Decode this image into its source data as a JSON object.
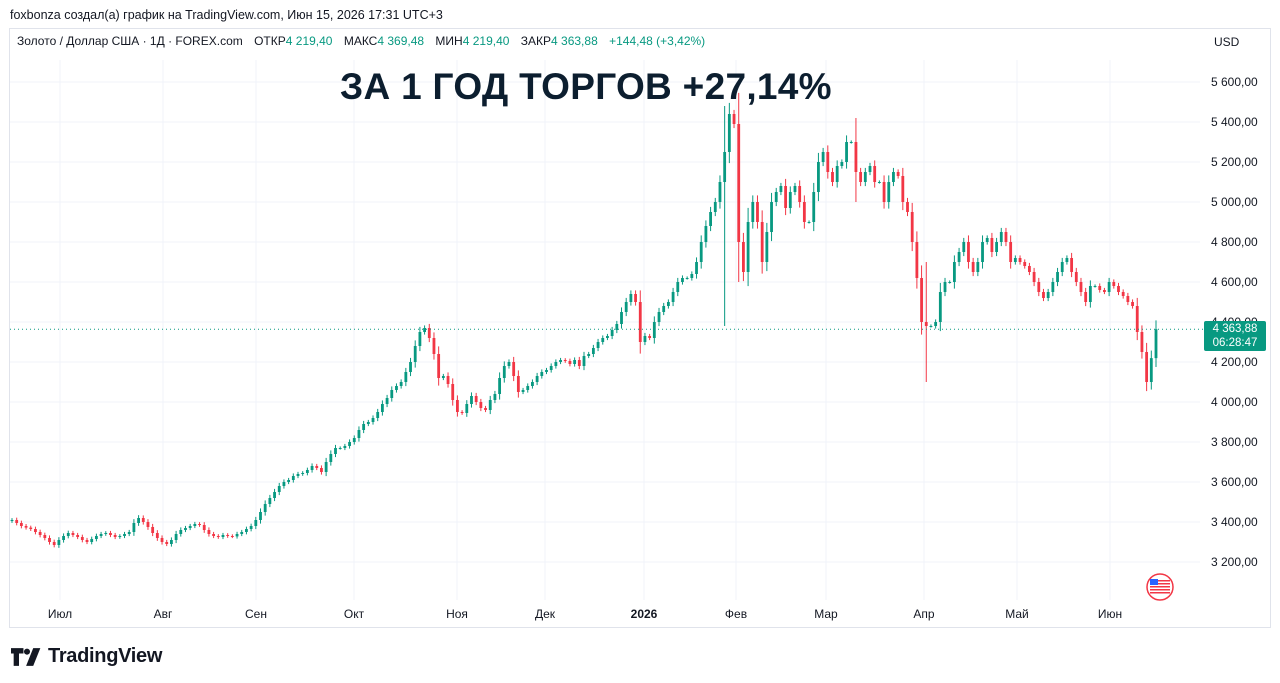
{
  "attribution": "foxbonza создал(а) график на TradingView.com, Июн 15, 2026 17:31 UTC+3",
  "legend": {
    "symbol": "Золото / Доллар США · 1Д · FOREX.com",
    "open_label": "ОТКР",
    "open_value": "4 219,40",
    "high_label": "МАКС",
    "high_value": "4 369,48",
    "low_label": "МИН",
    "low_value": "4 219,40",
    "close_label": "ЗАКР",
    "close_value": "4 363,88",
    "change": "+144,48 (+3,42%)"
  },
  "currency": "USD",
  "headline": "ЗА 1 ГОД ТОРГОВ +27,14%",
  "price_tag": {
    "price": "4 363,88",
    "countdown": "06:28:47"
  },
  "logo_text": "TradingView",
  "colors": {
    "up": "#089981",
    "down": "#f23645",
    "grid": "#f0f3fa",
    "text": "#131722"
  },
  "chart_data": {
    "type": "line",
    "ylim": [
      3000,
      5700
    ],
    "y_ticks": [
      {
        "value": 3200,
        "label": "3 200,00"
      },
      {
        "value": 3400,
        "label": "3 400,00"
      },
      {
        "value": 3600,
        "label": "3 600,00"
      },
      {
        "value": 3800,
        "label": "3 800,00"
      },
      {
        "value": 4000,
        "label": "4 000,00"
      },
      {
        "value": 4200,
        "label": "4 200,00"
      },
      {
        "value": 4400,
        "label": "4 400,00"
      },
      {
        "value": 4600,
        "label": "4 600,00"
      },
      {
        "value": 4800,
        "label": "4 800,00"
      },
      {
        "value": 5000,
        "label": "5 000,00"
      },
      {
        "value": 5200,
        "label": "5 200,00"
      },
      {
        "value": 5400,
        "label": "5 400,00"
      },
      {
        "value": 5600,
        "label": "5 600,00"
      }
    ],
    "x_ticks": [
      {
        "label": "Июл",
        "bold": false
      },
      {
        "label": "Авг",
        "bold": false
      },
      {
        "label": "Сен",
        "bold": false
      },
      {
        "label": "Окт",
        "bold": false
      },
      {
        "label": "Ноя",
        "bold": false
      },
      {
        "label": "Дек",
        "bold": false
      },
      {
        "label": "2026",
        "bold": true
      },
      {
        "label": "Фев",
        "bold": false
      },
      {
        "label": "Мар",
        "bold": false
      },
      {
        "label": "Апр",
        "bold": false
      },
      {
        "label": "Май",
        "bold": false
      },
      {
        "label": "Июн",
        "bold": false
      }
    ],
    "last_price": 4363.88,
    "series": [
      {
        "close": [
          3410,
          3395,
          3380,
          3372,
          3365,
          3350,
          3335,
          3320,
          3300,
          3285,
          3310,
          3330,
          3345,
          3335,
          3325,
          3310,
          3300,
          3315,
          3330,
          3340,
          3345,
          3335,
          3325,
          3330,
          3340,
          3350,
          3395,
          3420,
          3400,
          3375,
          3345,
          3320,
          3300,
          3290,
          3310,
          3340,
          3360,
          3370,
          3380,
          3390,
          3385,
          3360,
          3340,
          3330,
          3325,
          3335,
          3330,
          3328,
          3340,
          3350,
          3365,
          3380,
          3410,
          3450,
          3490,
          3520,
          3550,
          3580,
          3600,
          3610,
          3630,
          3640,
          3645,
          3660,
          3680,
          3670,
          3650,
          3700,
          3740,
          3770,
          3770,
          3780,
          3800,
          3820,
          3860,
          3890,
          3900,
          3920,
          3950,
          3990,
          4020,
          4060,
          4080,
          4100,
          4150,
          4200,
          4280,
          4350,
          4370,
          4320,
          4240,
          4120,
          4130,
          4090,
          4010,
          3950,
          3945,
          3990,
          4030,
          4000,
          3970,
          3960,
          4010,
          4040,
          4120,
          4180,
          4200,
          4130,
          4050,
          4060,
          4080,
          4100,
          4130,
          4150,
          4160,
          4180,
          4200,
          4210,
          4205,
          4190,
          4210,
          4180,
          4230,
          4240,
          4270,
          4300,
          4320,
          4330,
          4360,
          4390,
          4450,
          4500,
          4540,
          4500,
          4300,
          4330,
          4320,
          4400,
          4450,
          4480,
          4500,
          4550,
          4600,
          4620,
          4620,
          4640,
          4700,
          4800,
          4880,
          4950,
          5000,
          5100,
          5250,
          5440,
          5390,
          4800,
          4650,
          4900,
          5000,
          4900,
          4700,
          4850,
          5000,
          5050,
          5080,
          4970,
          5050,
          5080,
          5000,
          4900,
          4900,
          5050,
          5200,
          5250,
          5150,
          5100,
          5180,
          5200,
          5300,
          5300,
          5150,
          5100,
          5150,
          5180,
          5100,
          5100,
          5000,
          5100,
          5150,
          5130,
          5000,
          4950,
          4800,
          4620,
          4400,
          4380,
          4380,
          4400,
          4550,
          4600,
          4600,
          4700,
          4750,
          4800,
          4700,
          4650,
          4700,
          4800,
          4820,
          4750,
          4800,
          4850,
          4800,
          4700,
          4720,
          4700,
          4680,
          4650,
          4600,
          4550,
          4520,
          4550,
          4600,
          4650,
          4700,
          4720,
          4650,
          4600,
          4550,
          4500,
          4580,
          4580,
          4560,
          4550,
          4600,
          4580,
          4550,
          4530,
          4500,
          4480,
          4350,
          4250,
          4100,
          4219.4,
          4363.88
        ]
      }
    ]
  }
}
